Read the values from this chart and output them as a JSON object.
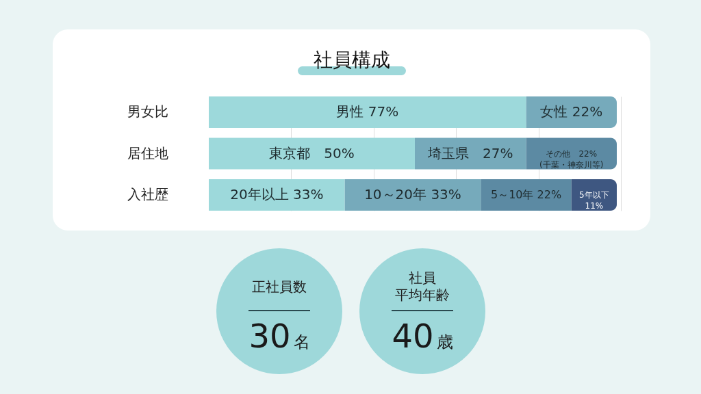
{
  "chart_data": [
    {
      "type": "bar",
      "title": "社員構成",
      "orientation": "horizontal",
      "stacked": true,
      "categories": [
        "男女比",
        "居住地",
        "入社歴"
      ],
      "series": [
        {
          "color": "#9dd9db",
          "values": [
            77,
            50,
            33
          ],
          "value_labels": [
            "男性 77%",
            "東京都　50%",
            "20年以上 33%"
          ]
        },
        {
          "color": "#76aabb",
          "values": [
            22,
            27,
            33
          ],
          "value_labels": [
            "女性 22%",
            "埼玉県　27%",
            "10～20年 33%"
          ]
        },
        {
          "color": "#5c8aa3",
          "values": [
            null,
            22,
            22
          ],
          "value_labels": [
            null,
            "その他　22%\n(千葉・神奈川等)",
            "5～10年 22%"
          ]
        },
        {
          "color": "#3e5781",
          "values": [
            null,
            null,
            11
          ],
          "value_labels": [
            null,
            null,
            "5年以下\n11%"
          ]
        }
      ],
      "xlim": [
        0,
        100
      ],
      "xticks": [
        {
          "value": 20,
          "label": null
        },
        {
          "value": 40,
          "label": null
        },
        {
          "value": 60,
          "label": null
        },
        {
          "value": 80,
          "label": null
        },
        {
          "value": 100,
          "label": null
        }
      ],
      "grid": "x",
      "tick_labels": "y"
    },
    {
      "type": "other",
      "annotations": [
        "正社員数",
        "30名",
        "社員",
        "平均年齢",
        "40歳"
      ]
    }
  ]
}
